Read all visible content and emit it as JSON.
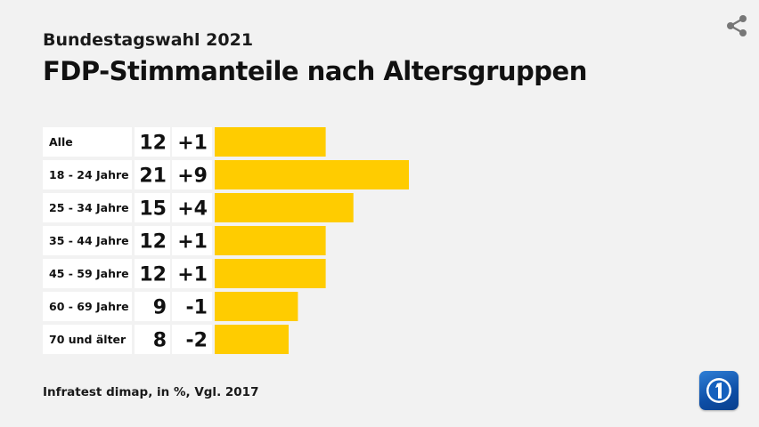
{
  "header": {
    "subtitle": "Bundestagswahl 2021",
    "title": "FDP-Stimmanteile nach Altersgruppen"
  },
  "footer": {
    "source": "Infratest dimap, in %, Vgl. 2017"
  },
  "icons": {
    "share": "share-icon",
    "logo": "ard-logo-icon"
  },
  "colors": {
    "bar": "#ffcc00",
    "label_bg": "#ffffff",
    "background": "#f2f2f2"
  },
  "chart_data": {
    "type": "bar",
    "orientation": "horizontal",
    "categories": [
      "Alle",
      "18 - 24 Jahre",
      "25 - 34 Jahre",
      "35 - 44 Jahre",
      "45 - 59 Jahre",
      "60 - 69 Jahre",
      "70 und älter"
    ],
    "values": [
      12,
      21,
      15,
      12,
      12,
      9,
      8
    ],
    "value_labels": [
      "12",
      "21",
      "15",
      "12",
      "12",
      "9",
      "8"
    ],
    "change_labels": [
      "+1",
      "+9",
      "+4",
      "+1",
      "+1",
      "-1",
      "-2"
    ],
    "xlim": [
      0,
      21
    ],
    "grid": false
  }
}
